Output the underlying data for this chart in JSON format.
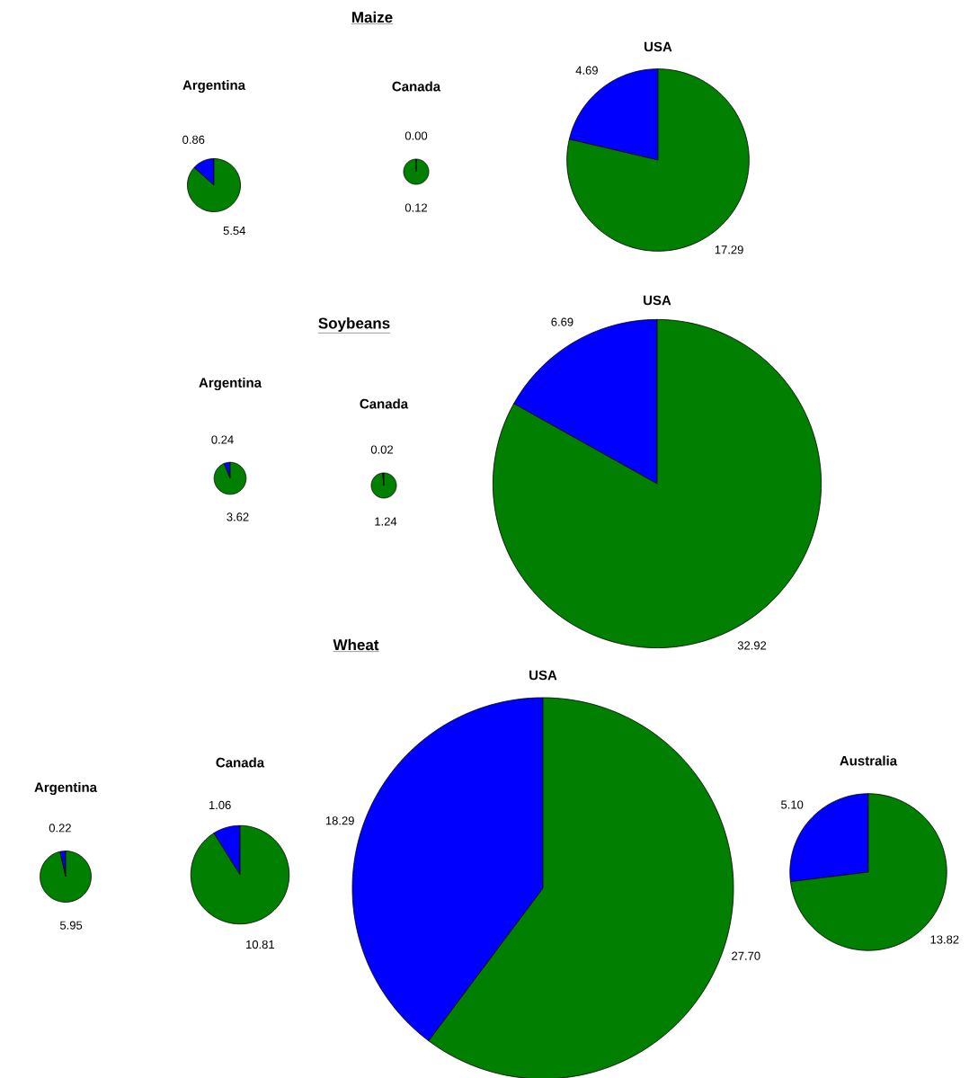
{
  "chart_data": [
    {
      "type": "other",
      "title": "Maize"
    },
    {
      "type": "pie",
      "title": "Argentina",
      "categories": [
        null,
        null
      ],
      "values": [
        0.86,
        5.54
      ],
      "colors": [
        "#0000ff",
        "#007f00"
      ],
      "value_labels": [
        "0.86",
        "5.54"
      ]
    },
    {
      "type": "pie",
      "title": "Canada",
      "categories": [
        null,
        null
      ],
      "values": [
        0.0,
        0.12
      ],
      "colors": [
        "#0000ff",
        "#007f00"
      ],
      "value_labels": [
        "0.00",
        "0.12"
      ]
    },
    {
      "type": "pie",
      "title": "USA",
      "categories": [
        null,
        null
      ],
      "values": [
        4.69,
        17.29
      ],
      "colors": [
        "#0000ff",
        "#007f00"
      ],
      "value_labels": [
        "4.69",
        "17.29"
      ]
    },
    {
      "type": "other",
      "title": "Soybeans"
    },
    {
      "type": "pie",
      "title": "Argentina",
      "categories": [
        null,
        null
      ],
      "values": [
        0.24,
        3.62
      ],
      "colors": [
        "#0000ff",
        "#007f00"
      ],
      "value_labels": [
        "0.24",
        "3.62"
      ]
    },
    {
      "type": "pie",
      "title": "Canada",
      "categories": [
        null,
        null
      ],
      "values": [
        0.02,
        1.24
      ],
      "colors": [
        "#0000ff",
        "#007f00"
      ],
      "value_labels": [
        "0.02",
        "1.24"
      ]
    },
    {
      "type": "pie",
      "title": "USA",
      "categories": [
        null,
        null
      ],
      "values": [
        6.69,
        32.92
      ],
      "colors": [
        "#0000ff",
        "#007f00"
      ],
      "value_labels": [
        "6.69",
        "32.92"
      ]
    },
    {
      "type": "other",
      "title": "Wheat"
    },
    {
      "type": "pie",
      "title": "Argentina",
      "categories": [
        null,
        null
      ],
      "values": [
        0.22,
        5.95
      ],
      "colors": [
        "#0000ff",
        "#007f00"
      ],
      "value_labels": [
        "0.22",
        "5.95"
      ]
    },
    {
      "type": "pie",
      "title": "Canada",
      "categories": [
        null,
        null
      ],
      "values": [
        1.06,
        10.81
      ],
      "colors": [
        "#0000ff",
        "#007f00"
      ],
      "value_labels": [
        "1.06",
        "10.81"
      ]
    },
    {
      "type": "pie",
      "title": "USA",
      "categories": [
        null,
        null
      ],
      "values": [
        18.29,
        27.7
      ],
      "colors": [
        "#0000ff",
        "#007f00"
      ],
      "value_labels": [
        "18.29",
        "27.70"
      ]
    },
    {
      "type": "pie",
      "title": "Australia",
      "categories": [
        null,
        null
      ],
      "values": [
        5.1,
        13.82
      ],
      "colors": [
        "#0000ff",
        "#007f00"
      ],
      "value_labels": [
        "5.10",
        "13.82"
      ]
    }
  ]
}
